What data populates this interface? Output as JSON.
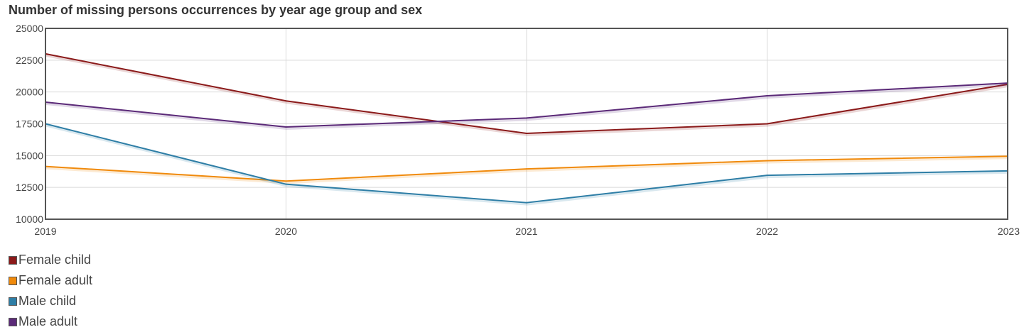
{
  "chart_data": {
    "type": "line",
    "title": "Number of missing persons occurrences by year age group and sex",
    "xlabel": "",
    "ylabel": "",
    "x": [
      "2019",
      "2020",
      "2021",
      "2022",
      "2023"
    ],
    "yticks": [
      "10000",
      "12500",
      "15000",
      "17500",
      "20000",
      "22500",
      "25000"
    ],
    "ylim": [
      10000,
      25000
    ],
    "grid": true,
    "legend_position": "bottom-left",
    "series": [
      {
        "name": "Female child",
        "color": "#8b1a1a",
        "values": [
          23000,
          19300,
          16750,
          17500,
          20600
        ]
      },
      {
        "name": "Female adult",
        "color": "#f08a0c",
        "values": [
          14150,
          13000,
          13950,
          14600,
          14950
        ]
      },
      {
        "name": "Male child",
        "color": "#2e7ea6",
        "values": [
          17500,
          12750,
          11300,
          13450,
          13800
        ]
      },
      {
        "name": "Male adult",
        "color": "#5b2a78",
        "values": [
          19200,
          17250,
          17950,
          19700,
          20700
        ]
      }
    ]
  }
}
